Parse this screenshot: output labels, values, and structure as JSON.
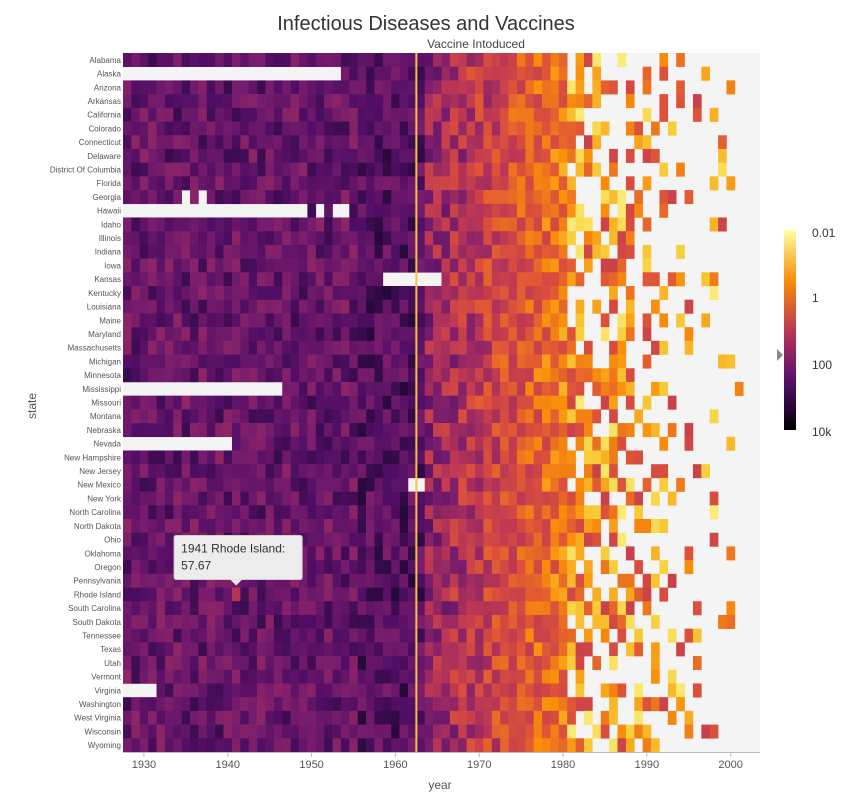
{
  "chart_data": {
    "type": "heatmap",
    "title": "Infectious Diseases and Vaccines",
    "annotation": "Vaccine Intoduced",
    "vaccine_year": 1963,
    "xlabel": "year",
    "ylabel": "state",
    "xlim": [
      1928,
      2003
    ],
    "x_ticks": [
      "1930",
      "1940",
      "1950",
      "1960",
      "1970",
      "1980",
      "1990",
      "2000"
    ],
    "x_tick_values": [
      1930,
      1940,
      1950,
      1960,
      1970,
      1980,
      1990,
      2000
    ],
    "states": [
      "Alabama",
      "Alaska",
      "Arizona",
      "Arkansas",
      "California",
      "Colorado",
      "Connecticut",
      "Delaware",
      "District Of Columbia",
      "Florida",
      "Georgia",
      "Hawaii",
      "Idaho",
      "Illinois",
      "Indiana",
      "Iowa",
      "Kansas",
      "Kentucky",
      "Louisiana",
      "Maine",
      "Maryland",
      "Massachusetts",
      "Michigan",
      "Minnesota",
      "Mississippi",
      "Missouri",
      "Montana",
      "Nebraska",
      "Nevada",
      "New Hampshire",
      "New Jersey",
      "New Mexico",
      "New York",
      "North Carolina",
      "North Dakota",
      "Ohio",
      "Oklahoma",
      "Oregon",
      "Pennsylvania",
      "Rhode Island",
      "South Carolina",
      "South Dakota",
      "Tennessee",
      "Texas",
      "Utah",
      "Vermont",
      "Virginia",
      "Washington",
      "West Virginia",
      "Wisconsin",
      "Wyoming"
    ],
    "colorbar": {
      "scale": "log",
      "labels": [
        "0.01",
        "1",
        "100",
        "10k"
      ],
      "colors": [
        "#fcffa4",
        "#f98e09",
        "#bc3754",
        "#57106e",
        "#000004"
      ]
    },
    "missing_spans": [
      {
        "state": "Alaska",
        "from": 1928,
        "to": 1953
      },
      {
        "state": "Georgia",
        "from": 1935,
        "to": 1935
      },
      {
        "state": "Georgia",
        "from": 1937,
        "to": 1937
      },
      {
        "state": "Hawaii",
        "from": 1928,
        "to": 1949
      },
      {
        "state": "Hawaii",
        "from": 1951,
        "to": 1951
      },
      {
        "state": "Hawaii",
        "from": 1953,
        "to": 1954
      },
      {
        "state": "Kansas",
        "from": 1959,
        "to": 1965
      },
      {
        "state": "Mississippi",
        "from": 1928,
        "to": 1946
      },
      {
        "state": "Nevada",
        "from": 1928,
        "to": 1940
      },
      {
        "state": "New Mexico",
        "from": 1962,
        "to": 1963
      },
      {
        "state": "Virginia",
        "from": 1928,
        "to": 1931
      }
    ],
    "tooltip": {
      "year": 1941,
      "state": "Rhode Island",
      "value": 57.67,
      "line1": "1941 Rhode Island:",
      "line2": "57.67"
    }
  }
}
